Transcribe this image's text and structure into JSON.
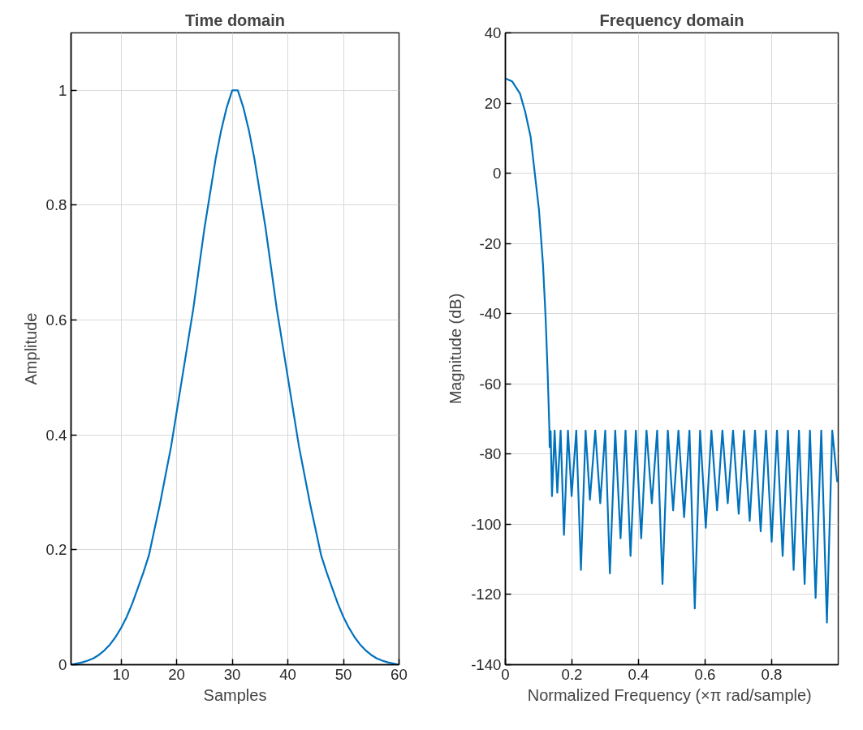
{
  "chart_data": [
    {
      "type": "line",
      "title": "Time domain",
      "xlabel": "Samples",
      "ylabel": "Amplitude",
      "color": "#0072bd",
      "grid": true,
      "xlim": [
        1,
        60
      ],
      "ylim": [
        0,
        1.1
      ],
      "xticks": [
        10,
        20,
        30,
        40,
        50,
        60
      ],
      "yticks": [
        0,
        0.2,
        0.4,
        0.6,
        0.8,
        1
      ],
      "x": [
        1,
        2,
        3,
        4,
        5,
        6,
        7,
        8,
        9,
        10,
        11,
        12,
        13,
        14,
        15,
        16,
        17,
        18,
        19,
        20,
        21,
        22,
        23,
        24,
        25,
        26,
        27,
        28,
        29,
        30,
        31,
        32,
        33,
        34,
        35,
        36,
        37,
        38,
        39,
        40,
        41,
        42,
        43,
        44,
        45,
        46,
        47,
        48,
        49,
        50,
        51,
        52,
        53,
        54,
        55,
        56,
        57,
        58,
        59,
        60
      ],
      "values": [
        0.0,
        0.002,
        0.004,
        0.007,
        0.011,
        0.017,
        0.025,
        0.035,
        0.048,
        0.064,
        0.083,
        0.106,
        0.133,
        0.16,
        0.19,
        0.235,
        0.28,
        0.33,
        0.38,
        0.44,
        0.5,
        0.56,
        0.62,
        0.69,
        0.76,
        0.82,
        0.88,
        0.93,
        0.97,
        1.0,
        1.0,
        0.97,
        0.93,
        0.88,
        0.82,
        0.76,
        0.69,
        0.62,
        0.56,
        0.5,
        0.44,
        0.38,
        0.33,
        0.28,
        0.235,
        0.19,
        0.16,
        0.133,
        0.106,
        0.083,
        0.064,
        0.048,
        0.035,
        0.025,
        0.017,
        0.011,
        0.007,
        0.004,
        0.002,
        0.0
      ]
    },
    {
      "type": "line",
      "title": "Frequency domain",
      "xlabel": "Normalized Frequency  (×π rad/sample)",
      "ylabel": "Magnitude (dB)",
      "color": "#0072bd",
      "grid": true,
      "xlim": [
        0,
        1
      ],
      "ylim": [
        -140,
        40
      ],
      "xticks": [
        0,
        0.2,
        0.4,
        0.6,
        0.8
      ],
      "yticks": [
        -140,
        -120,
        -100,
        -80,
        -60,
        -40,
        -20,
        0,
        20,
        40
      ],
      "x": [
        0,
        0.02,
        0.044,
        0.06,
        0.076,
        0.101,
        0.113,
        0.121,
        0.127,
        0.132,
        0.133,
        0.136,
        0.14,
        0.148,
        0.156,
        0.166,
        0.176,
        0.188,
        0.199,
        0.213,
        0.227,
        0.241,
        0.254,
        0.27,
        0.285,
        0.3,
        0.314,
        0.33,
        0.346,
        0.361,
        0.376,
        0.392,
        0.408,
        0.424,
        0.44,
        0.456,
        0.472,
        0.488,
        0.504,
        0.52,
        0.537,
        0.553,
        0.569,
        0.585,
        0.602,
        0.619,
        0.636,
        0.652,
        0.668,
        0.684,
        0.701,
        0.717,
        0.734,
        0.75,
        0.767,
        0.783,
        0.8,
        0.816,
        0.833,
        0.849,
        0.866,
        0.882,
        0.899,
        0.915,
        0.932,
        0.949,
        0.966,
        0.982,
        0.997
      ],
      "values": [
        27,
        26.2,
        22.7,
        17.3,
        10.3,
        -10.5,
        -26,
        -41.4,
        -56.8,
        -72.3,
        -78,
        -73.5,
        -92,
        -73.3,
        -91,
        -73.3,
        -103,
        -73.3,
        -92,
        -73.3,
        -113,
        -73.3,
        -93,
        -73.3,
        -94,
        -73.3,
        -114,
        -73.3,
        -104,
        -73.3,
        -109,
        -73.3,
        -104,
        -73.3,
        -94,
        -73.3,
        -117,
        -73.3,
        -96,
        -73.3,
        -98,
        -73.3,
        -124,
        -73.3,
        -101,
        -73.3,
        -96,
        -73.3,
        -94,
        -73.3,
        -97,
        -73.3,
        -99,
        -73.3,
        -102,
        -73.3,
        -105,
        -73.3,
        -109,
        -73.3,
        -113,
        -73.3,
        -117,
        -73.3,
        -121,
        -73.3,
        -128,
        -73.3,
        -88
      ]
    }
  ]
}
